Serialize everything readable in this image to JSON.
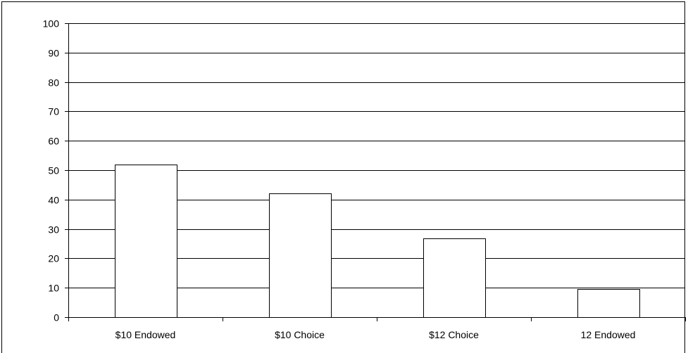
{
  "chart_data": {
    "type": "bar",
    "title": "",
    "xlabel": "",
    "ylabel": "",
    "categories": [
      "$10 Endowed",
      "$10 Choice",
      "$12 Choice",
      "12 Endowed"
    ],
    "values": [
      52,
      42.2,
      26.8,
      9.6
    ],
    "ylim": [
      0,
      100
    ],
    "yticks": [
      0,
      10,
      20,
      30,
      40,
      50,
      60,
      70,
      80,
      90,
      100
    ],
    "grid": true,
    "legend": "none",
    "colors": {
      "bar_fill": "#ffffff",
      "bar_stroke": "#000000",
      "grid": "#000000",
      "axis": "#000000"
    }
  }
}
